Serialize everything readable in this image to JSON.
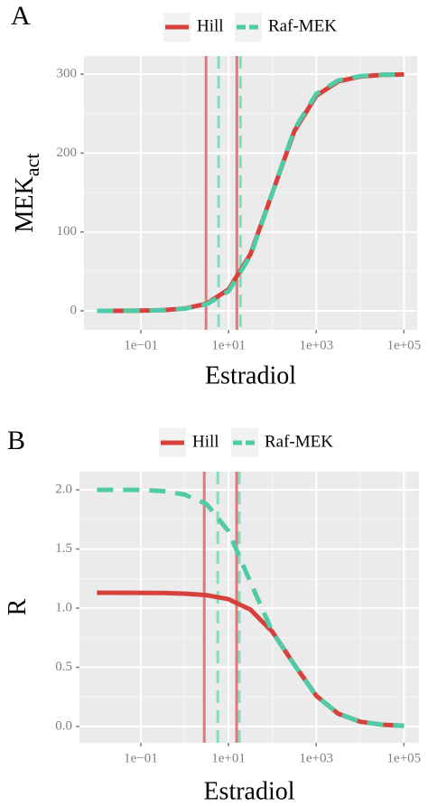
{
  "chart_data": [
    {
      "type": "line",
      "panel_label": "A",
      "xlabel": "Estradiol",
      "ylabel": "MEK",
      "ylabel_subscript": "act",
      "xscale": "log",
      "grid": true,
      "legend_position": "top",
      "xlim": [
        0.005,
        200000
      ],
      "ylim": [
        -24,
        323
      ],
      "xticks": [
        {
          "value": 0.1,
          "label": "1e−01"
        },
        {
          "value": 10,
          "label": "1e+01"
        },
        {
          "value": 1000,
          "label": "1e+03"
        },
        {
          "value": 100000,
          "label": "1e+05"
        }
      ],
      "yticks": [
        0,
        100,
        200,
        300
      ],
      "x": [
        0.01,
        0.0316,
        0.1,
        0.316,
        1,
        3.16,
        10,
        31.6,
        100,
        316,
        1000,
        3162,
        10000,
        31623,
        100000
      ],
      "series": [
        {
          "name": "Hill",
          "color": "#d7403b",
          "dash": false,
          "markers": [
            3.05,
            15.4
          ],
          "values": [
            0.03,
            0.09,
            0.3,
            0.9,
            3.0,
            9.2,
            27.3,
            72.1,
            150,
            227.9,
            272.7,
            290.8,
            297.0,
            299.1,
            299.7
          ]
        },
        {
          "name": "Raf-MEK",
          "color": "#4fcba5",
          "dash": true,
          "markers": [
            5.9,
            18.6
          ],
          "values": [
            0.05,
            0.1,
            0.3,
            0.9,
            2.8,
            8.5,
            25,
            70,
            150,
            230,
            275,
            292,
            297.5,
            299.2,
            299.8
          ]
        }
      ]
    },
    {
      "type": "line",
      "panel_label": "B",
      "xlabel": "Estradiol",
      "ylabel": "R",
      "xscale": "log",
      "grid": true,
      "legend_position": "top",
      "xlim": [
        0.004,
        220000
      ],
      "ylim": [
        -0.138,
        2.154
      ],
      "xticks": [
        {
          "value": 0.1,
          "label": "1e−01"
        },
        {
          "value": 10,
          "label": "1e+01"
        },
        {
          "value": 1000,
          "label": "1e+03"
        },
        {
          "value": 100000,
          "label": "1e+05"
        }
      ],
      "yticks": [
        {
          "value": 0,
          "label": "0.0"
        },
        0.5,
        {
          "value": 1,
          "label": "1.0"
        },
        1.5,
        {
          "value": 2,
          "label": "2.0"
        }
      ],
      "x": [
        0.01,
        0.0316,
        0.1,
        0.316,
        1,
        3.16,
        10,
        31.6,
        100,
        316,
        1000,
        3162,
        10000,
        31623,
        100000
      ],
      "series": [
        {
          "name": "Hill",
          "color": "#d7403b",
          "dash": false,
          "markers": [
            2.8,
            15.3
          ],
          "values": [
            1.13,
            1.13,
            1.129,
            1.128,
            1.123,
            1.11,
            1.076,
            0.988,
            0.801,
            0.522,
            0.26,
            0.108,
            0.04,
            0.0145,
            0.0051
          ]
        },
        {
          "name": "Raf-MEK",
          "color": "#4fcba5",
          "dash": true,
          "markers": [
            5.7,
            17.6
          ],
          "values": [
            2.0,
            2.0,
            2.0,
            1.99,
            1.96,
            1.88,
            1.65,
            1.22,
            0.8,
            0.52,
            0.26,
            0.108,
            0.04,
            0.0145,
            0.005
          ]
        }
      ]
    }
  ]
}
